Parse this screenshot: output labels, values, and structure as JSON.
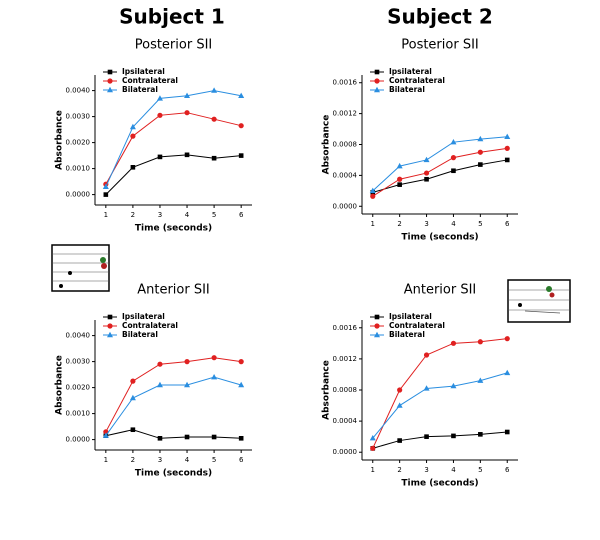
{
  "subjects": [
    "Subject 1",
    "Subject 2"
  ],
  "chart_data": [
    {
      "type": "line",
      "title": "Posterior SII",
      "xlabel": "Time (seconds)",
      "ylabel": "Absorbance",
      "x": [
        1,
        2,
        3,
        4,
        5,
        6
      ],
      "xlim": [
        0.6,
        6.4
      ],
      "xticks": [
        1,
        2,
        3,
        4,
        5,
        6
      ],
      "ylim": [
        -0.0004,
        0.0046
      ],
      "yticks": [
        {
          "value": 0,
          "label": "0.0000"
        },
        {
          "value": 0.001,
          "label": "0.0010"
        },
        {
          "value": 0.002,
          "label": "0.0020"
        },
        {
          "value": 0.003,
          "label": "0.0030"
        },
        {
          "value": 0.004,
          "label": "0.0040"
        }
      ],
      "series": [
        {
          "name": "Ipsilateral",
          "color": "#000000",
          "marker": "square",
          "values": [
            0.0,
            0.00105,
            0.00145,
            0.00153,
            0.0014,
            0.0015
          ]
        },
        {
          "name": "Contralateral",
          "color": "#e02020",
          "marker": "circle",
          "values": [
            0.0004,
            0.00225,
            0.00305,
            0.00315,
            0.0029,
            0.00265
          ]
        },
        {
          "name": "Bilateral",
          "color": "#2a8ee0",
          "marker": "triangle",
          "values": [
            0.0003,
            0.0026,
            0.0037,
            0.0038,
            0.004,
            0.0038
          ]
        }
      ]
    },
    {
      "type": "line",
      "title": "Posterior SII",
      "xlabel": "Time (seconds)",
      "ylabel": "Absorbance",
      "x": [
        1,
        2,
        3,
        4,
        5,
        6
      ],
      "xlim": [
        0.6,
        6.4
      ],
      "xticks": [
        1,
        2,
        3,
        4,
        5,
        6
      ],
      "ylim": [
        -0.0001,
        0.0017
      ],
      "yticks": [
        {
          "value": 0,
          "label": "0.0000"
        },
        {
          "value": 0.0004,
          "label": "0.0004"
        },
        {
          "value": 0.0008,
          "label": "0.0008"
        },
        {
          "value": 0.0012,
          "label": "0.0012"
        },
        {
          "value": 0.0016,
          "label": "0.0016"
        }
      ],
      "series": [
        {
          "name": "Ipsilateral",
          "color": "#000000",
          "marker": "square",
          "values": [
            0.00018,
            0.00028,
            0.00035,
            0.00046,
            0.00054,
            0.0006
          ]
        },
        {
          "name": "Contralateral",
          "color": "#e02020",
          "marker": "circle",
          "values": [
            0.00013,
            0.00035,
            0.00043,
            0.00063,
            0.0007,
            0.00075
          ]
        },
        {
          "name": "Bilateral",
          "color": "#2a8ee0",
          "marker": "triangle",
          "values": [
            0.0002,
            0.00052,
            0.0006,
            0.00083,
            0.00087,
            0.0009
          ]
        }
      ]
    },
    {
      "type": "line",
      "title": "Anterior SII",
      "xlabel": "Time (seconds)",
      "ylabel": "Absorbance",
      "x": [
        1,
        2,
        3,
        4,
        5,
        6
      ],
      "xlim": [
        0.6,
        6.4
      ],
      "xticks": [
        1,
        2,
        3,
        4,
        5,
        6
      ],
      "ylim": [
        -0.0004,
        0.0046
      ],
      "yticks": [
        {
          "value": 0,
          "label": "0.0000"
        },
        {
          "value": 0.001,
          "label": "0.0010"
        },
        {
          "value": 0.002,
          "label": "0.0020"
        },
        {
          "value": 0.003,
          "label": "0.0030"
        },
        {
          "value": 0.004,
          "label": "0.0040"
        }
      ],
      "series": [
        {
          "name": "Ipsilateral",
          "color": "#000000",
          "marker": "square",
          "values": [
            0.00015,
            0.00038,
            5e-05,
            0.0001,
            0.0001,
            5e-05
          ]
        },
        {
          "name": "Contralateral",
          "color": "#e02020",
          "marker": "circle",
          "values": [
            0.0003,
            0.00225,
            0.0029,
            0.003,
            0.00315,
            0.003
          ]
        },
        {
          "name": "Bilateral",
          "color": "#2a8ee0",
          "marker": "triangle",
          "values": [
            0.00015,
            0.0016,
            0.0021,
            0.0021,
            0.0024,
            0.0021
          ]
        }
      ]
    },
    {
      "type": "line",
      "title": "Anterior SII",
      "xlabel": "Time (seconds)",
      "ylabel": "Absorbance",
      "x": [
        1,
        2,
        3,
        4,
        5,
        6
      ],
      "xlim": [
        0.6,
        6.4
      ],
      "xticks": [
        1,
        2,
        3,
        4,
        5,
        6
      ],
      "ylim": [
        -0.0001,
        0.0017
      ],
      "yticks": [
        {
          "value": 0,
          "label": "0.0000"
        },
        {
          "value": 0.0004,
          "label": "0.0004"
        },
        {
          "value": 0.0008,
          "label": "0.0008"
        },
        {
          "value": 0.0012,
          "label": "0.0012"
        },
        {
          "value": 0.0016,
          "label": "0.0016"
        }
      ],
      "series": [
        {
          "name": "Ipsilateral",
          "color": "#000000",
          "marker": "square",
          "values": [
            5e-05,
            0.00015,
            0.0002,
            0.00021,
            0.00023,
            0.00026
          ]
        },
        {
          "name": "Contralateral",
          "color": "#e02020",
          "marker": "circle",
          "values": [
            5e-05,
            0.0008,
            0.00125,
            0.0014,
            0.00142,
            0.00146
          ]
        },
        {
          "name": "Bilateral",
          "color": "#2a8ee0",
          "marker": "triangle",
          "values": [
            0.00018,
            0.0006,
            0.00082,
            0.00085,
            0.00092,
            0.00102
          ]
        }
      ]
    }
  ]
}
